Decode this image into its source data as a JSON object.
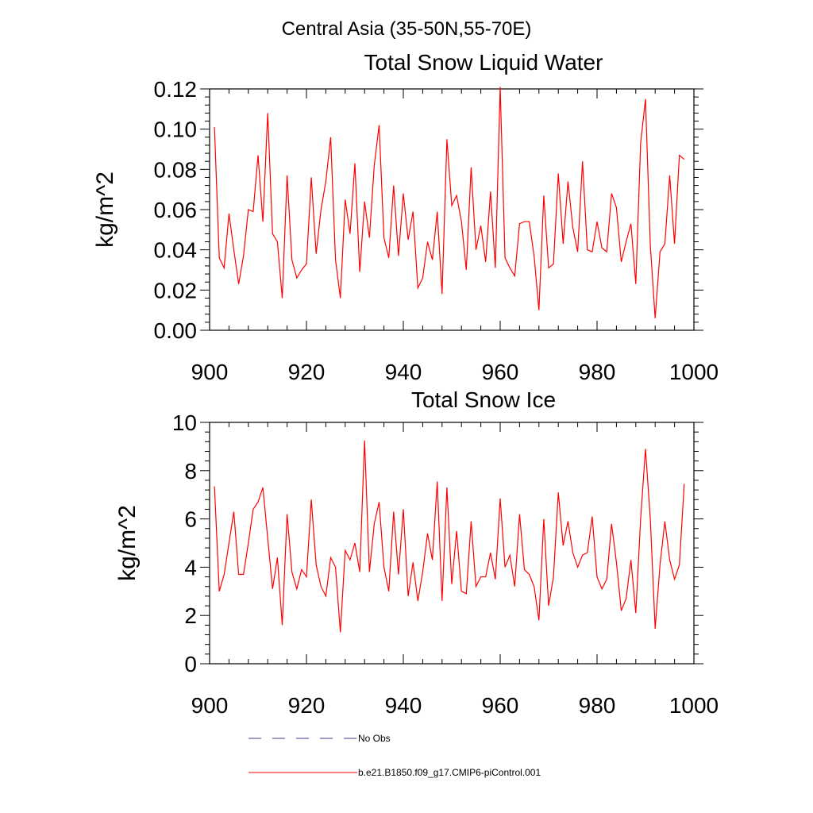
{
  "header": {
    "title": "Central Asia (35-50N,55-70E)"
  },
  "colors": {
    "model": "#ff0000",
    "obs": "#3a3a8c",
    "axis": "#000000"
  },
  "chart_data": [
    {
      "type": "line",
      "title": "Total Snow Liquid Water",
      "xlabel": "",
      "ylabel": "kg/m^2",
      "xlim": [
        900,
        1000
      ],
      "ylim": [
        0,
        0.12
      ],
      "xticks": [
        900,
        920,
        940,
        960,
        980,
        1000
      ],
      "xtick_labels": [
        "900",
        "920",
        "940",
        "960",
        "980",
        "1000"
      ],
      "yticks": [
        0,
        0.02,
        0.04,
        0.06,
        0.08,
        0.1,
        0.12
      ],
      "ytick_labels": [
        "0.00",
        "0.02",
        "0.04",
        "0.06",
        "0.08",
        "0.10",
        "0.12"
      ],
      "x_start": 901,
      "series": [
        {
          "name": "b.e21.B1850.f09_g17.CMIP6-piControl.001",
          "values": [
            0.101,
            0.036,
            0.031,
            0.058,
            0.04,
            0.023,
            0.037,
            0.06,
            0.059,
            0.087,
            0.054,
            0.108,
            0.048,
            0.044,
            0.016,
            0.077,
            0.035,
            0.026,
            0.03,
            0.033,
            0.076,
            0.038,
            0.06,
            0.074,
            0.096,
            0.035,
            0.016,
            0.065,
            0.048,
            0.083,
            0.029,
            0.064,
            0.046,
            0.082,
            0.102,
            0.046,
            0.036,
            0.072,
            0.037,
            0.068,
            0.045,
            0.059,
            0.021,
            0.026,
            0.044,
            0.035,
            0.059,
            0.018,
            0.095,
            0.062,
            0.067,
            0.054,
            0.03,
            0.081,
            0.04,
            0.052,
            0.034,
            0.069,
            0.031,
            0.121,
            0.036,
            0.031,
            0.027,
            0.053,
            0.054,
            0.054,
            0.037,
            0.01,
            0.067,
            0.031,
            0.033,
            0.078,
            0.043,
            0.074,
            0.051,
            0.039,
            0.084,
            0.04,
            0.039,
            0.054,
            0.041,
            0.039,
            0.068,
            0.061,
            0.034,
            0.044,
            0.053,
            0.023,
            0.093,
            0.115,
            0.042,
            0.006,
            0.039,
            0.043,
            0.077,
            0.043,
            0.087,
            0.085
          ]
        }
      ]
    },
    {
      "type": "line",
      "title": "Total Snow Ice",
      "xlabel": "",
      "ylabel": "kg/m^2",
      "xlim": [
        900,
        1000
      ],
      "ylim": [
        0,
        10
      ],
      "xticks": [
        900,
        920,
        940,
        960,
        980,
        1000
      ],
      "xtick_labels": [
        "900",
        "920",
        "940",
        "960",
        "980",
        "1000"
      ],
      "yticks": [
        0,
        2,
        4,
        6,
        8,
        10
      ],
      "ytick_labels": [
        "0",
        "2",
        "4",
        "6",
        "8",
        "10"
      ],
      "x_start": 901,
      "series": [
        {
          "name": "b.e21.B1850.f09_g17.CMIP6-piControl.001",
          "values": [
            7.35,
            3.0,
            3.7,
            5.0,
            6.3,
            3.7,
            3.7,
            5.0,
            6.4,
            6.7,
            7.3,
            5.2,
            3.1,
            4.4,
            1.6,
            6.2,
            3.8,
            3.1,
            3.9,
            3.6,
            6.8,
            4.1,
            3.2,
            2.8,
            4.4,
            4.0,
            1.3,
            4.7,
            4.3,
            5.0,
            3.8,
            9.25,
            3.8,
            5.8,
            6.7,
            4.0,
            3.0,
            6.3,
            3.7,
            6.4,
            2.8,
            4.2,
            2.6,
            3.8,
            5.4,
            4.3,
            7.55,
            2.6,
            7.3,
            3.3,
            5.5,
            3.0,
            2.9,
            5.9,
            3.2,
            3.6,
            3.6,
            4.6,
            3.5,
            6.85,
            4.0,
            4.5,
            3.2,
            6.2,
            3.9,
            3.7,
            3.2,
            1.8,
            6.0,
            2.4,
            3.6,
            7.1,
            4.9,
            5.9,
            4.6,
            4.0,
            4.5,
            4.6,
            6.1,
            3.6,
            3.1,
            3.5,
            5.8,
            4.2,
            2.2,
            2.7,
            4.3,
            2.1,
            6.0,
            8.9,
            6.0,
            1.45,
            4.1,
            5.9,
            4.3,
            3.5,
            4.1,
            7.45
          ]
        }
      ]
    }
  ],
  "legend": {
    "items": [
      {
        "label": "No Obs",
        "style": "dashed",
        "color": "#3a3a8c"
      },
      {
        "label": "b.e21.B1850.f09_g17.CMIP6-piControl.001",
        "style": "solid",
        "color": "#ff0000"
      }
    ]
  }
}
